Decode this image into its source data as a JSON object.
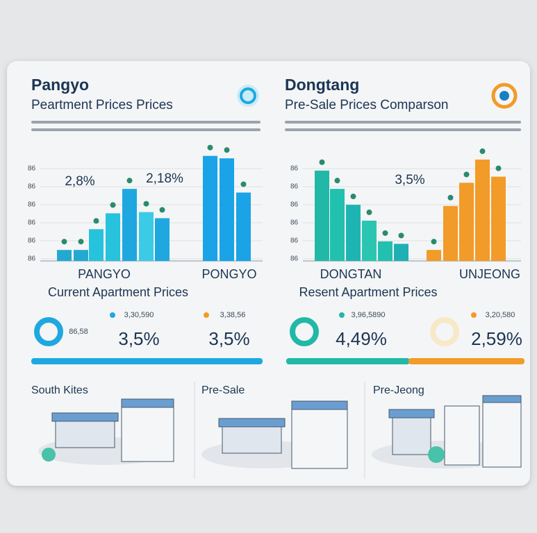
{
  "panels": [
    {
      "title": "Pangyo",
      "subtitle": "Peartment Prices Prices",
      "axis_labels": [
        "86",
        "86",
        "86",
        "86",
        "86",
        "86"
      ],
      "annotations": [
        "2,8%",
        "2,18%"
      ],
      "bars_a": [
        9,
        9,
        26,
        39,
        59,
        40,
        35
      ],
      "bars_b": [
        86,
        84,
        56
      ],
      "group_labels": [
        "PANGYO",
        "PONGYO"
      ],
      "caption": "Current Apartment Prices",
      "note": "86,58",
      "small_stats": [
        "3,30,590",
        "3,38,56"
      ],
      "big_stats": [
        "3,5%",
        "3,5%"
      ]
    },
    {
      "title": "Dongtang",
      "subtitle": "Pre-Sale Prices Comparson",
      "axis_labels": [
        "86",
        "86",
        "86",
        "86",
        "86",
        "86"
      ],
      "annotations": [
        "3,5%"
      ],
      "bars_a": [
        74,
        59,
        46,
        33,
        16,
        14
      ],
      "bars_b": [
        9,
        45,
        64,
        83,
        69
      ],
      "group_labels": [
        "DONGTAN",
        "UNJEONG"
      ],
      "caption": "Resent Apartment Prices",
      "small_stats": [
        "3,96,5890",
        "3,20,580"
      ],
      "big_stats": [
        "4,49%",
        "2,59%"
      ]
    }
  ],
  "footer": [
    "South Kites",
    "Pre-Sale",
    "Pre-Jeong"
  ]
}
